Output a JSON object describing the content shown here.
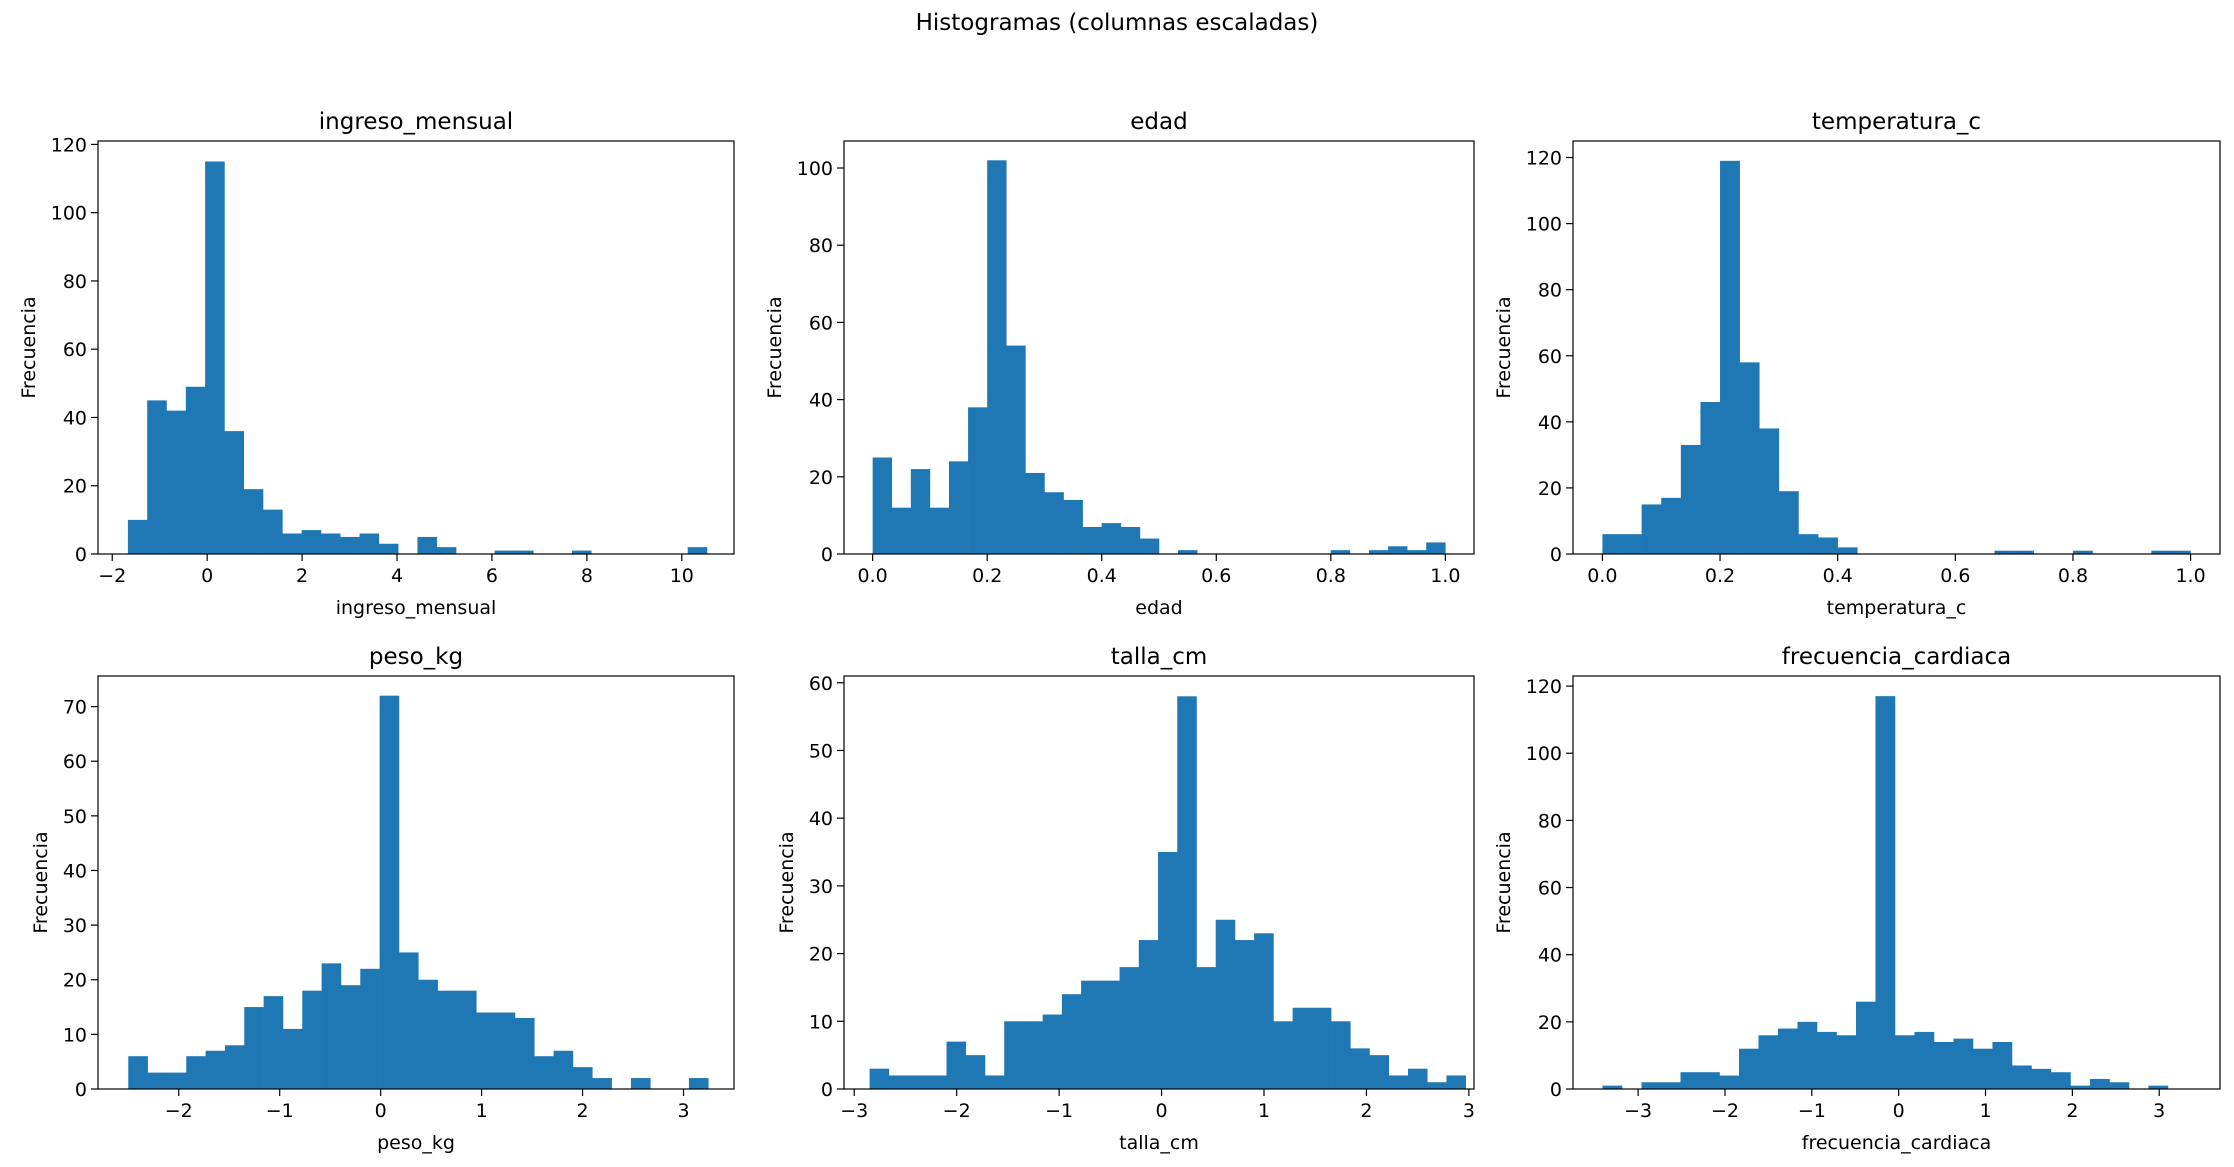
{
  "figure": {
    "suptitle": "Histogramas (columnas escaladas)",
    "bar_color": "#1f77b4"
  },
  "chart_data": [
    {
      "type": "bar",
      "title": "ingreso_mensual",
      "xlabel": "ingreso_mensual",
      "ylabel": "Frecuencia",
      "xlim": [
        -2.3,
        11.1
      ],
      "ylim": [
        0,
        121
      ],
      "xticks": [
        -2,
        0,
        2,
        4,
        6,
        8,
        10
      ],
      "xtick_labels": [
        "−2",
        "0",
        "2",
        "4",
        "6",
        "8",
        "10"
      ],
      "yticks": [
        0,
        20,
        40,
        60,
        80,
        100,
        120
      ],
      "bin_start": -1.67,
      "bin_width": 0.4067,
      "counts": [
        10,
        45,
        42,
        49,
        115,
        36,
        19,
        13,
        6,
        7,
        6,
        5,
        6,
        3,
        0,
        5,
        2,
        0,
        0,
        1,
        1,
        0,
        0,
        1,
        0,
        0,
        0,
        0,
        0,
        2
      ]
    },
    {
      "type": "bar",
      "title": "edad",
      "xlabel": "edad",
      "ylabel": "Frecuencia",
      "xlim": [
        -0.05,
        1.05
      ],
      "ylim": [
        0,
        107
      ],
      "xticks": [
        0,
        0.2,
        0.4,
        0.6,
        0.8,
        1.0
      ],
      "xtick_labels": [
        "0.0",
        "0.2",
        "0.4",
        "0.6",
        "0.8",
        "1.0"
      ],
      "yticks": [
        0,
        20,
        40,
        60,
        80,
        100
      ],
      "bin_start": 0,
      "bin_width": 0.03333,
      "counts": [
        25,
        12,
        22,
        12,
        24,
        38,
        102,
        54,
        21,
        16,
        14,
        7,
        8,
        7,
        4,
        0,
        1,
        0,
        0,
        0,
        0,
        0,
        0,
        0,
        1,
        0,
        1,
        2,
        1,
        3
      ]
    },
    {
      "type": "bar",
      "title": "temperatura_c",
      "xlabel": "temperatura_c",
      "ylabel": "Frecuencia",
      "xlim": [
        -0.05,
        1.05
      ],
      "ylim": [
        0,
        125
      ],
      "xticks": [
        0,
        0.2,
        0.4,
        0.6,
        0.8,
        1.0
      ],
      "xtick_labels": [
        "0.0",
        "0.2",
        "0.4",
        "0.6",
        "0.8",
        "1.0"
      ],
      "yticks": [
        0,
        20,
        40,
        60,
        80,
        100,
        120
      ],
      "bin_start": 0,
      "bin_width": 0.03333,
      "counts": [
        6,
        6,
        15,
        17,
        33,
        46,
        119,
        58,
        38,
        19,
        6,
        5,
        2,
        0,
        0,
        0,
        0,
        0,
        0,
        0,
        1,
        1,
        0,
        0,
        1,
        0,
        0,
        0,
        1,
        1
      ]
    },
    {
      "type": "bar",
      "title": "peso_kg",
      "xlabel": "peso_kg",
      "ylabel": "Frecuencia",
      "xlim": [
        -2.8,
        3.5
      ],
      "ylim": [
        0,
        75.6
      ],
      "xticks": [
        -2,
        -1,
        0,
        1,
        2,
        3
      ],
      "xtick_labels": [
        "−2",
        "−1",
        "0",
        "1",
        "2",
        "3"
      ],
      "yticks": [
        0,
        10,
        20,
        30,
        40,
        50,
        60,
        70
      ],
      "bin_start": -2.5,
      "bin_width": 0.1915,
      "counts": [
        6,
        3,
        3,
        6,
        7,
        8,
        15,
        17,
        11,
        18,
        23,
        19,
        22,
        72,
        25,
        20,
        18,
        18,
        14,
        14,
        13,
        6,
        7,
        4,
        2,
        0,
        2,
        0,
        0,
        2
      ]
    },
    {
      "type": "bar",
      "title": "talla_cm",
      "xlabel": "talla_cm",
      "ylabel": "Frecuencia",
      "xlim": [
        -3.1,
        3.05
      ],
      "ylim": [
        0,
        61
      ],
      "xticks": [
        -3,
        -2,
        -1,
        0,
        1,
        2,
        3
      ],
      "xtick_labels": [
        "−3",
        "−2",
        "−1",
        "0",
        "1",
        "2",
        "3"
      ],
      "yticks": [
        0,
        10,
        20,
        30,
        40,
        50,
        60
      ],
      "bin_start": -2.85,
      "bin_width": 0.1877,
      "counts": [
        3,
        2,
        2,
        2,
        7,
        5,
        2,
        10,
        10,
        11,
        14,
        16,
        16,
        18,
        22,
        35,
        58,
        18,
        25,
        22,
        23,
        10,
        12,
        12,
        10,
        6,
        5,
        2,
        3,
        1,
        2
      ]
    },
    {
      "type": "bar",
      "title": "frecuencia_cardiaca",
      "xlabel": "frecuencia_cardiaca",
      "ylabel": "Frecuencia",
      "xlim": [
        -3.75,
        3.7
      ],
      "ylim": [
        0,
        123
      ],
      "xticks": [
        -3,
        -2,
        -1,
        0,
        1,
        2,
        3
      ],
      "xtick_labels": [
        "−3",
        "−2",
        "−1",
        "0",
        "1",
        "2",
        "3"
      ],
      "yticks": [
        0,
        20,
        40,
        60,
        80,
        100,
        120
      ],
      "bin_start": -3.41,
      "bin_width": 0.2245,
      "counts": [
        1,
        0,
        2,
        2,
        5,
        5,
        4,
        12,
        16,
        18,
        20,
        17,
        16,
        26,
        117,
        16,
        17,
        14,
        15,
        12,
        14,
        7,
        6,
        5,
        1,
        3,
        2,
        0,
        1,
        0
      ]
    }
  ]
}
